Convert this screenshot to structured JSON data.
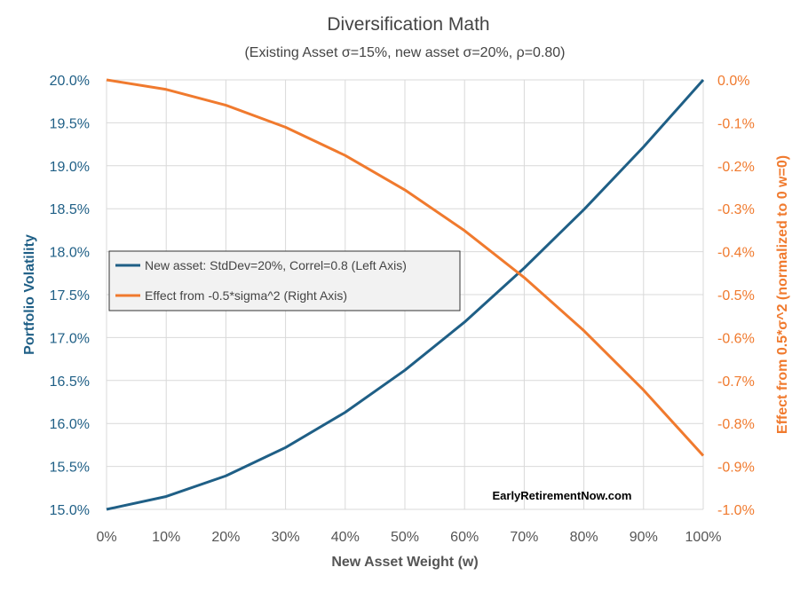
{
  "chart_data": {
    "type": "line",
    "title": "Diversification Math",
    "subtitle": "(Existing Asset σ=15%, new asset σ=20%, ρ=0.80)",
    "xlabel": "New Asset Weight (w)",
    "ylabel_left": "Portfolio Volatility",
    "ylabel_right": "Effect from 0.5*σ^2 (normalized to 0 w=0)",
    "watermark": "EarlyRetirementNow.com",
    "x": [
      0,
      0.1,
      0.2,
      0.3,
      0.4,
      0.5,
      0.6,
      0.7,
      0.8,
      0.9,
      1.0
    ],
    "xlim": [
      0,
      1
    ],
    "ylim_left": [
      0.15,
      0.2
    ],
    "ylim_right": [
      -0.01,
      0
    ],
    "x_ticks": [
      "0%",
      "10%",
      "20%",
      "30%",
      "40%",
      "50%",
      "60%",
      "70%",
      "80%",
      "90%",
      "100%"
    ],
    "y_ticks_left": [
      "15.0%",
      "15.5%",
      "16.0%",
      "16.5%",
      "17.0%",
      "17.5%",
      "18.0%",
      "18.5%",
      "19.0%",
      "19.5%",
      "20.0%"
    ],
    "y_ticks_right": [
      "-1.0%",
      "-0.9%",
      "-0.8%",
      "-0.7%",
      "-0.6%",
      "-0.5%",
      "-0.4%",
      "-0.3%",
      "-0.2%",
      "-0.1%",
      "0.0%"
    ],
    "grid": true,
    "legend_position": "center-left",
    "series": [
      {
        "name": "New asset: StdDev=20%, Correl=0.8 (Left Axis)",
        "axis": "left",
        "color": "#1f5f86",
        "values": [
          0.15,
          0.1515,
          0.1539,
          0.1572,
          0.1613,
          0.1662,
          0.1718,
          0.1781,
          0.1849,
          0.1922,
          0.2
        ]
      },
      {
        "name": "Effect from -0.5*sigma^2 (Right Axis)",
        "axis": "right",
        "color": "#f07a2e",
        "values": [
          0,
          -0.000223,
          -0.00059,
          -0.001103,
          -0.00176,
          -0.002563,
          -0.00351,
          -0.004603,
          -0.00584,
          -0.007223,
          -0.00875
        ]
      }
    ]
  }
}
